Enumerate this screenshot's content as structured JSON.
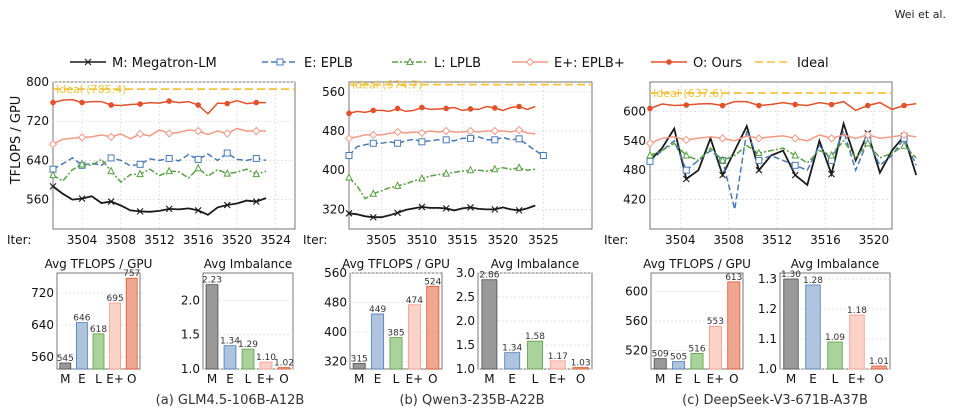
{
  "header": {
    "author": "Wei et al."
  },
  "legend": {
    "items": [
      {
        "key": "M",
        "label": "M: Megatron-LM",
        "color": "#1a1a1a",
        "marker": "x",
        "dash": ""
      },
      {
        "key": "E",
        "label": "E: EPLB",
        "color": "#4a7ab5",
        "marker": "square",
        "dash": "6,3"
      },
      {
        "key": "L",
        "label": "L: LPLB",
        "color": "#5a9e45",
        "marker": "triangle",
        "dash": "6,2,2,2"
      },
      {
        "key": "E+",
        "label": "E+: EPLB+",
        "color": "#f19a86",
        "marker": "diamond",
        "dash": ""
      },
      {
        "key": "O",
        "label": "O: Ours",
        "color": "#e1522c",
        "marker": "circle",
        "dash": ""
      },
      {
        "key": "Ideal",
        "label": "Ideal",
        "color": "#f2c33c",
        "marker": "none",
        "dash": "8,4"
      }
    ]
  },
  "y_axis_label": "TFLOPS / GPU",
  "iter_label": "Iter:",
  "bar_colors": {
    "M": "#999999",
    "E": "#aec4de",
    "L": "#a9d39a",
    "E+": "#fbd2c8",
    "O": "#f0a791"
  },
  "bar_edges": {
    "M": "#4d4d4d",
    "E": "#4a7ab5",
    "L": "#5a9e45",
    "E+": "#f19a86",
    "O": "#e1522c"
  },
  "chart_data": [
    {
      "type": "line",
      "caption": "(a) GLM4.5-106B-A12B",
      "xlim": [
        3501,
        3526
      ],
      "ylim": [
        500,
        800
      ],
      "yticks": [
        560,
        640,
        720,
        800
      ],
      "xticks": [
        3504,
        3508,
        3512,
        3516,
        3520,
        3524
      ],
      "ideal": {
        "label": "Ideal (785.4)",
        "value": 785.4
      },
      "series": [
        {
          "key": "M",
          "values": [
            587,
            572,
            560,
            562,
            567,
            553,
            556,
            548,
            538,
            536,
            535,
            537,
            541,
            540,
            542,
            538,
            529,
            544,
            549,
            552,
            558,
            556,
            563
          ]
        },
        {
          "key": "E",
          "values": [
            622,
            633,
            645,
            630,
            634,
            630,
            645,
            640,
            629,
            632,
            643,
            640,
            644,
            639,
            652,
            642,
            653,
            640,
            655,
            642,
            640,
            644,
            640
          ]
        },
        {
          "key": "L",
          "values": [
            610,
            598,
            621,
            632,
            630,
            642,
            618,
            596,
            611,
            612,
            622,
            609,
            618,
            617,
            604,
            624,
            608,
            621,
            613,
            616,
            622,
            612,
            618
          ]
        },
        {
          "key": "E+",
          "values": [
            673,
            683,
            685,
            687,
            688,
            692,
            688,
            694,
            684,
            694,
            690,
            702,
            695,
            697,
            702,
            700,
            693,
            700,
            695,
            705,
            700,
            700,
            700
          ]
        },
        {
          "key": "O",
          "values": [
            758,
            763,
            764,
            758,
            760,
            760,
            753,
            752,
            754,
            755,
            758,
            757,
            761,
            758,
            760,
            753,
            735,
            757,
            756,
            762,
            756,
            758,
            758
          ]
        }
      ],
      "bars": {
        "title": "Avg TFLOPS / GPU",
        "categories": [
          "M",
          "E",
          "L",
          "E+",
          "O"
        ],
        "values": [
          545,
          646,
          618,
          695,
          757
        ],
        "labels": [
          "545",
          "646",
          "618",
          "695",
          "757"
        ],
        "ylim": [
          530,
          770
        ],
        "yticks": [
          560,
          640,
          720
        ]
      },
      "imbalance": {
        "title": "Avg Imbalance",
        "categories": [
          "M",
          "E",
          "L",
          "E+",
          "O"
        ],
        "values": [
          2.23,
          1.34,
          1.29,
          1.1,
          1.02
        ],
        "labels": [
          "2.23",
          "1.34",
          "1.29",
          "1.10",
          "1.02"
        ],
        "ylim": [
          1.0,
          2.4
        ],
        "yticks": [
          "1.0",
          "1.5",
          "2.0"
        ]
      }
    },
    {
      "type": "line",
      "caption": "(b) Qwen3-235B-A22B",
      "xlim": [
        3501,
        3531
      ],
      "ylim": [
        280,
        580
      ],
      "yticks": [
        320,
        400,
        480,
        560
      ],
      "xticks": [
        3505,
        3510,
        3515,
        3520,
        3525
      ],
      "ideal": {
        "label": "Ideal (574.7)",
        "value": 574.7
      },
      "series": [
        {
          "key": "M",
          "values": [
            312,
            310,
            306,
            304,
            304,
            308,
            313,
            319,
            322,
            325,
            323,
            323,
            322,
            318,
            322,
            324,
            321,
            320,
            320,
            324,
            320,
            318,
            322,
            328
          ]
        },
        {
          "key": "E",
          "values": [
            430,
            448,
            452,
            455,
            455,
            458,
            455,
            460,
            463,
            458,
            460,
            462,
            462,
            460,
            465,
            465,
            468,
            462,
            462,
            467,
            462,
            464,
            452,
            440,
            430
          ]
        },
        {
          "key": "L",
          "values": [
            385,
            368,
            342,
            352,
            358,
            364,
            368,
            372,
            378,
            383,
            388,
            391,
            393,
            396,
            398,
            400,
            400,
            398,
            402,
            405,
            402,
            405,
            400,
            402
          ]
        },
        {
          "key": "E+",
          "values": [
            465,
            468,
            472,
            472,
            472,
            475,
            478,
            476,
            478,
            476,
            480,
            478,
            480,
            478,
            478,
            480,
            478,
            480,
            480,
            480,
            478,
            482,
            476,
            474
          ]
        },
        {
          "key": "O",
          "values": [
            516,
            520,
            518,
            522,
            522,
            520,
            526,
            520,
            522,
            528,
            524,
            525,
            526,
            528,
            522,
            525,
            524,
            530,
            527,
            522,
            528,
            530,
            524,
            530
          ]
        }
      ],
      "bars": {
        "title": "Avg TFLOPS / GPU",
        "categories": [
          "M",
          "E",
          "L",
          "E+",
          "O"
        ],
        "values": [
          315,
          449,
          385,
          474,
          524
        ],
        "labels": [
          "315",
          "449",
          "385",
          "474",
          "524"
        ],
        "ylim": [
          300,
          560
        ],
        "yticks": [
          320,
          400,
          480,
          560
        ]
      },
      "imbalance": {
        "title": "Avg Imbalance",
        "categories": [
          "M",
          "E",
          "L",
          "E+",
          "O"
        ],
        "values": [
          2.86,
          1.34,
          1.58,
          1.17,
          1.03
        ],
        "labels": [
          "2.86",
          "1.34",
          "1.58",
          "1.17",
          "1.03"
        ],
        "ylim": [
          1.0,
          3.0
        ],
        "yticks": [
          "1.0",
          "1.5",
          "2.0",
          "2.5",
          "3.0"
        ]
      }
    },
    {
      "type": "line",
      "caption": "(c) DeepSeek-V3-671B-A37B",
      "xlim": [
        3501.5,
        3521.5
      ],
      "ylim": [
        360,
        660
      ],
      "yticks": [
        420,
        480,
        540,
        600
      ],
      "xticks": [
        3504,
        3508,
        3512,
        3516,
        3520
      ],
      "ideal": {
        "label": "Ideal (637.6)",
        "value": 637.6
      },
      "series": [
        {
          "key": "M",
          "values": [
            500,
            525,
            565,
            462,
            480,
            545,
            470,
            520,
            570,
            480,
            510,
            520,
            470,
            450,
            540,
            472,
            575,
            500,
            555,
            475,
            520,
            550,
            470
          ]
        },
        {
          "key": "E",
          "values": [
            498,
            520,
            540,
            480,
            500,
            520,
            500,
            400,
            560,
            500,
            510,
            500,
            490,
            480,
            530,
            500,
            560,
            480,
            540,
            490,
            510,
            545,
            490
          ]
        },
        {
          "key": "L",
          "values": [
            510,
            520,
            535,
            510,
            500,
            525,
            500,
            510,
            530,
            515,
            520,
            525,
            510,
            495,
            520,
            510,
            540,
            505,
            535,
            505,
            515,
            530,
            505
          ]
        },
        {
          "key": "E+",
          "values": [
            535,
            545,
            548,
            542,
            545,
            548,
            545,
            540,
            550,
            545,
            548,
            550,
            545,
            540,
            552,
            545,
            552,
            545,
            552,
            545,
            548,
            552,
            548
          ]
        },
        {
          "key": "O",
          "values": [
            606,
            615,
            612,
            613,
            615,
            616,
            612,
            620,
            620,
            612,
            614,
            618,
            614,
            612,
            618,
            614,
            620,
            602,
            612,
            618,
            604,
            612,
            616
          ]
        }
      ],
      "bars": {
        "title": "Avg TFLOPS / GPU",
        "categories": [
          "M",
          "E",
          "L",
          "E+",
          "O"
        ],
        "values": [
          509,
          505,
          516,
          553,
          613
        ],
        "labels": [
          "509",
          "505",
          "516",
          "553",
          "613"
        ],
        "ylim": [
          495,
          625
        ],
        "yticks": [
          520,
          560,
          600
        ]
      },
      "imbalance": {
        "title": "Avg Imbalance",
        "categories": [
          "M",
          "E",
          "L",
          "E+",
          "O"
        ],
        "values": [
          1.3,
          1.28,
          1.09,
          1.18,
          1.01
        ],
        "labels": [
          "1.30",
          "1.28",
          "1.09",
          "1.18",
          "1.01"
        ],
        "ylim": [
          1.0,
          1.32
        ],
        "yticks": [
          "1.0",
          "1.1",
          "1.2",
          "1.3"
        ]
      }
    }
  ]
}
